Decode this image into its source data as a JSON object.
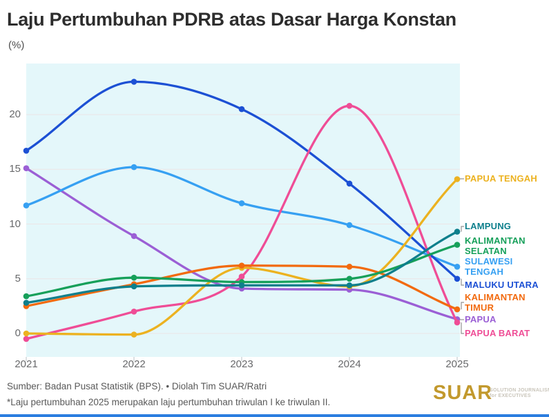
{
  "header": {
    "title": "Laju Pertumbuhan PDRB atas Dasar Harga Konstan",
    "units": "(%)"
  },
  "chart_data": {
    "type": "line",
    "title": "Laju Pertumbuhan PDRB atas Dasar Harga Konstan",
    "ylabel": "%",
    "xlabel": "",
    "x": [
      2021,
      2022,
      2023,
      2024,
      2025
    ],
    "yticks": [
      0,
      5,
      10,
      15,
      20
    ],
    "ylim": [
      -2,
      25
    ],
    "grid": true,
    "legend_position": "right",
    "plot_bg": "#e4f7fa",
    "grid_color": "#ece6e6",
    "series": [
      {
        "name": "PAPUA TENGAH",
        "color": "#ecb220",
        "values": [
          0.0,
          -0.1,
          6.0,
          4.3,
          14.1
        ],
        "label_lines": [
          "PAPUA TENGAH"
        ]
      },
      {
        "name": "LAMPUNG",
        "color": "#0e7f8c",
        "values": [
          2.8,
          4.3,
          4.4,
          4.4,
          9.3
        ],
        "label_lines": [
          "LAMPUNG"
        ]
      },
      {
        "name": "KALIMANTAN SELATAN",
        "color": "#16a05a",
        "values": [
          3.4,
          5.1,
          4.7,
          5.0,
          8.1
        ],
        "label_lines": [
          "KALIMANTAN",
          "SELATAN"
        ]
      },
      {
        "name": "SULAWESI TENGAH",
        "color": "#36a0f2",
        "values": [
          11.7,
          15.2,
          11.9,
          9.9,
          6.1
        ],
        "label_lines": [
          "SULAWESI",
          "TENGAH"
        ]
      },
      {
        "name": "MALUKU UTARA",
        "color": "#1c50d4",
        "values": [
          16.7,
          23.0,
          20.5,
          13.7,
          5.0
        ],
        "label_lines": [
          "MALUKU UTARA"
        ]
      },
      {
        "name": "KALIMANTAN TIMUR",
        "color": "#f26a0e",
        "values": [
          2.5,
          4.5,
          6.2,
          6.1,
          2.2
        ],
        "label_lines": [
          "KALIMANTAN",
          "TIMUR"
        ]
      },
      {
        "name": "PAPUA",
        "color": "#9b5fd5",
        "values": [
          15.1,
          8.9,
          4.1,
          4.0,
          1.3
        ],
        "label_lines": [
          "PAPUA"
        ]
      },
      {
        "name": "PAPUA BARAT",
        "color": "#ef4d96",
        "values": [
          -0.5,
          2.0,
          5.2,
          20.8,
          1.0
        ],
        "label_lines": [
          "PAPUA BARAT"
        ]
      }
    ]
  },
  "footer": {
    "source_line": "Sumber: Badan Pusat Statistik (BPS). • Diolah Tim SUAR/Ratri",
    "note_line": "*Laju pertumbuhan 2025 merupakan laju pertumbuhan triwulan I ke triwulan II.",
    "logo_text": "SUAR",
    "logo_color": "#c2992d",
    "logo_tagline_1": "SOLUTION JOURNALISM",
    "logo_tagline_2": "for EXECUTIVES",
    "accent_bar_color": "#2b7de0"
  }
}
